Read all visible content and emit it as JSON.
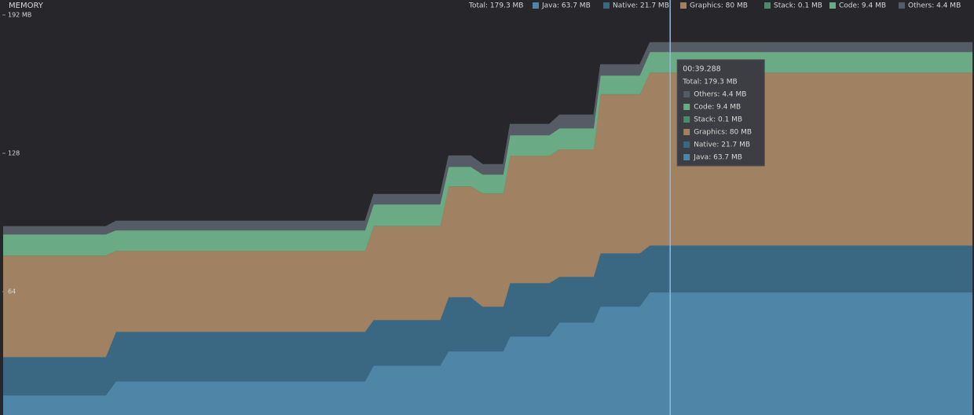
{
  "chart_data": {
    "type": "stacked-area",
    "title": "MEMORY",
    "legend_total": "Total: 179.3 MB",
    "x": [
      0.2,
      6.2,
      6.8,
      21.4,
      21.9,
      25.8,
      26.3,
      27.6,
      28.3,
      29.5,
      29.9,
      32.2,
      32.8,
      34.8,
      35.2,
      37.5,
      38.1,
      57
    ],
    "xlim": [
      0,
      57.1
    ],
    "ylim": [
      0,
      192
    ],
    "yticks": [
      {
        "value": 192,
        "label": "192 MB"
      },
      128,
      64
    ],
    "series": [
      {
        "name": "Java: 63.7 MB",
        "color": "#4f86a8",
        "values": [
          16,
          16,
          22.5,
          22.5,
          29.8,
          29.8,
          36.4,
          36.4,
          36.4,
          36.4,
          43.3,
          43.3,
          49.8,
          49.8,
          57.1,
          57.1,
          63.7,
          63.7
        ]
      },
      {
        "name": "Native: 21.7 MB",
        "color": "#3a6882",
        "values": [
          17.8,
          17.8,
          23,
          23,
          21.1,
          21.1,
          25.1,
          25.1,
          20.7,
          20.7,
          24.7,
          24.7,
          21.1,
          21.1,
          24.7,
          24.7,
          21.7,
          21.7
        ]
      },
      {
        "name": "Graphics: 80 MB",
        "color": "#a08161",
        "values": [
          46.9,
          46.9,
          37.4,
          37.4,
          43.6,
          43.6,
          51.2,
          51.2,
          52.4,
          52.4,
          58.9,
          58.9,
          58.9,
          58.9,
          73.5,
          73.5,
          80,
          80
        ]
      },
      {
        "name": "Stack: 0.1 MB",
        "color": "#4b8a6a",
        "values": [
          0.1,
          0.1,
          0.1,
          0.1,
          0.1,
          0.1,
          0.1,
          0.1,
          0.1,
          0.1,
          0.1,
          0.1,
          0.1,
          0.1,
          0.1,
          0.1,
          0.1,
          0.1
        ]
      },
      {
        "name": "Code: 9.4 MB",
        "color": "#6aab86",
        "values": [
          9.7,
          9.7,
          9.4,
          9.4,
          9.8,
          9.8,
          9,
          9,
          8.6,
          8.6,
          9.4,
          9.4,
          9.7,
          9.7,
          8.6,
          8.6,
          9.4,
          9.4
        ]
      },
      {
        "name": "Others: 4.4 MB",
        "color": "#555c65",
        "values": [
          3.7,
          3.7,
          4.3,
          4.3,
          4.7,
          4.7,
          5.1,
          5.1,
          4.7,
          4.7,
          5.1,
          5.1,
          6.2,
          6.2,
          5.1,
          5.1,
          4.4,
          4.4
        ]
      }
    ],
    "cursor_x": 39.288,
    "tooltip": {
      "time": "00:39.288",
      "total": "Total: 179.3 MB",
      "entries": [
        "Others: 4.4 MB",
        "Code: 9.4 MB",
        "Stack: 0.1 MB",
        "Graphics: 80 MB",
        "Native: 21.7 MB",
        "Java: 63.7 MB"
      ]
    }
  }
}
